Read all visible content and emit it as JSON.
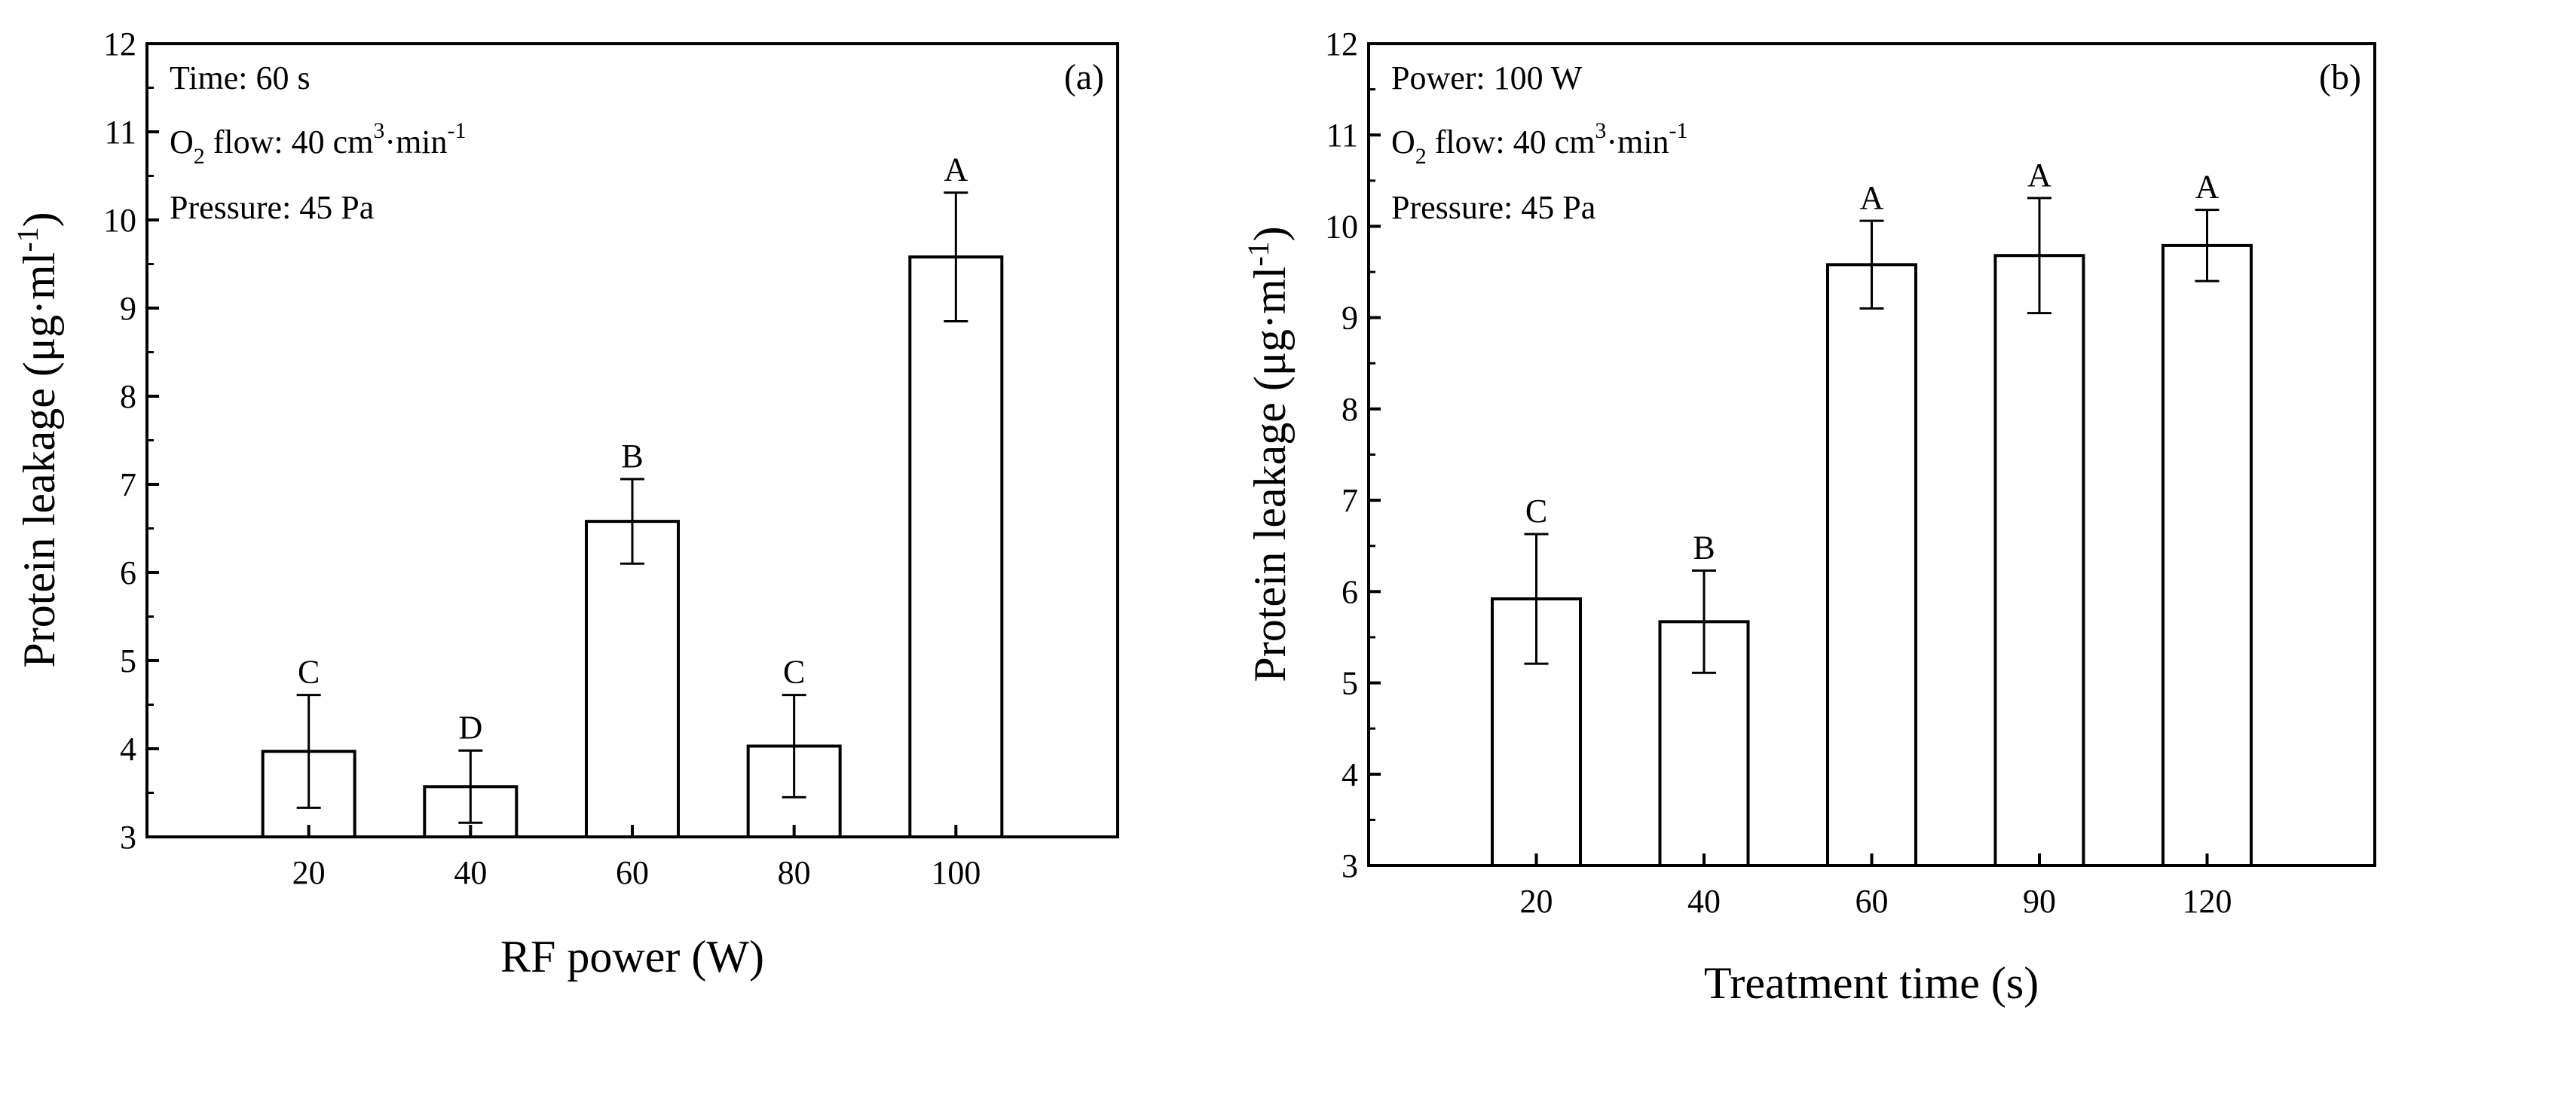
{
  "chart_data": [
    {
      "type": "bar",
      "panel_label": "(a)",
      "title": "",
      "xlabel": "RF power (W)",
      "ylabel_main": "Protein leakage (μg·ml",
      "ylabel_sup": "-1",
      "ylabel_close": ")",
      "categories": [
        "20",
        "40",
        "60",
        "80",
        "100"
      ],
      "values": [
        3.97,
        3.57,
        6.58,
        4.03,
        9.58
      ],
      "errors": [
        0.64,
        0.41,
        0.48,
        0.58,
        0.73
      ],
      "letters": [
        "C",
        "D",
        "B",
        "C",
        "A"
      ],
      "ylim": [
        3,
        12
      ],
      "yticks": [
        "3",
        "4",
        "5",
        "6",
        "7",
        "8",
        "9",
        "10",
        "11",
        "12"
      ],
      "conditions": {
        "line1": "Time: 60 s",
        "line2_a": "O",
        "line2_sub": "2",
        "line2_b": " flow: 40 cm",
        "line2_sup1": "3",
        "line2_c": "·min",
        "line2_sup2": "-1",
        "line3": "Pressure: 45 Pa"
      },
      "grid": false,
      "bar_fill": "#ffffff",
      "bar_stroke": "#000000"
    },
    {
      "type": "bar",
      "panel_label": "(b)",
      "title": "",
      "xlabel": "Treatment time (s)",
      "ylabel_main": "Protein leakage (μg·ml",
      "ylabel_sup": "-1",
      "ylabel_close": ")",
      "categories": [
        "20",
        "40",
        "60",
        "90",
        "120"
      ],
      "values": [
        5.92,
        5.67,
        9.58,
        9.68,
        9.79
      ],
      "errors": [
        0.71,
        0.56,
        0.48,
        0.63,
        0.39
      ],
      "letters": [
        "C",
        "B",
        "A",
        "A",
        "A"
      ],
      "ylim": [
        3,
        12
      ],
      "yticks": [
        "3",
        "4",
        "5",
        "6",
        "7",
        "8",
        "9",
        "10",
        "11",
        "12"
      ],
      "conditions": {
        "line1": "Power: 100 W",
        "line2_a": "O",
        "line2_sub": "2",
        "line2_b": " flow: 40 cm",
        "line2_sup1": "3",
        "line2_c": "·min",
        "line2_sup2": "-1",
        "line3": "Pressure: 45 Pa"
      },
      "grid": false,
      "bar_fill": "#ffffff",
      "bar_stroke": "#000000"
    }
  ]
}
